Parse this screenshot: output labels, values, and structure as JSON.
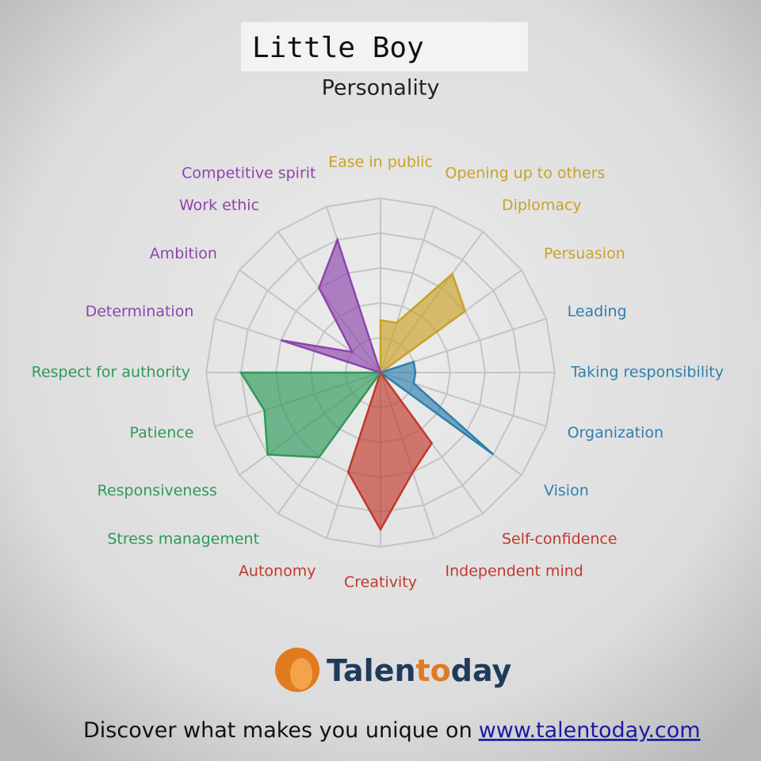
{
  "header": {
    "name": "Little Boy"
  },
  "chart_data": {
    "type": "radar",
    "title": "Personality",
    "categories": [
      "Ease in public",
      "Opening up to others",
      "Diplomacy",
      "Persuasion",
      "Leading",
      "Taking responsibility",
      "Organization",
      "Vision",
      "Self-confidence",
      "Independent mind",
      "Creativity",
      "Autonomy",
      "Stress management",
      "Responsiveness",
      "Patience",
      "Respect for authority",
      "Determination",
      "Ambition",
      "Work ethic",
      "Competitive spirit"
    ],
    "values": [
      1.5,
      1.5,
      3.5,
      3,
      1,
      1,
      1,
      4,
      2.5,
      3,
      4.5,
      3,
      3,
      4,
      3.5,
      4,
      3,
      1,
      3,
      4
    ],
    "category_colors": [
      "#c9a227",
      "#c9a227",
      "#c9a227",
      "#c9a227",
      "#2f7fae",
      "#2f7fae",
      "#2f7fae",
      "#2f7fae",
      "#c0392b",
      "#c0392b",
      "#c0392b",
      "#c0392b",
      "#2e9a5a",
      "#2e9a5a",
      "#2e9a5a",
      "#2e9a5a",
      "#8e44ad",
      "#8e44ad",
      "#8e44ad",
      "#8e44ad"
    ],
    "rlim": [
      0,
      5
    ],
    "rticks": [
      1,
      2,
      3,
      4,
      5
    ],
    "grid": true
  },
  "brand": {
    "parts": [
      "Talen",
      "to",
      "day"
    ]
  },
  "footer": {
    "text": "Discover what makes you unique on",
    "link": "www.talentoday.com"
  }
}
